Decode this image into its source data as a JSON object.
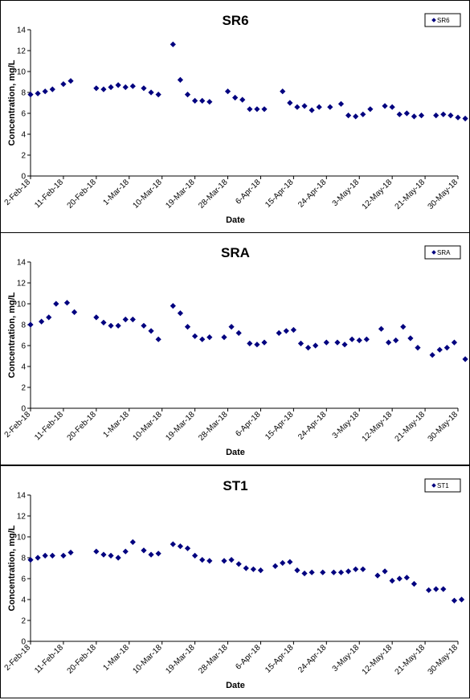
{
  "chart_data": [
    {
      "type": "scatter",
      "title": "SR6",
      "xlabel": "Date",
      "ylabel": "Concentration, mg/L",
      "ylim": [
        0,
        14
      ],
      "yticks": [
        "0",
        "2",
        "4",
        "6",
        "8",
        "10",
        "12",
        "14"
      ],
      "xlim": [
        "2018-02-02",
        "2018-05-30"
      ],
      "xticks": [
        "2-Feb-18",
        "11-Feb-18",
        "20-Feb-18",
        "1-Mar-18",
        "10-Mar-18",
        "19-Mar-18",
        "28-Mar-18",
        "6-Apr-18",
        "15-Apr-18",
        "24-Apr-18",
        "3-May-18",
        "12-May-18",
        "21-May-18",
        "30-May-18"
      ],
      "legend": "top-right",
      "color": "#00007f",
      "series": [
        {
          "name": "SR6",
          "points": [
            [
              "2018-02-02",
              7.8
            ],
            [
              "2018-02-04",
              7.9
            ],
            [
              "2018-02-06",
              8.1
            ],
            [
              "2018-02-08",
              8.3
            ],
            [
              "2018-02-11",
              8.8
            ],
            [
              "2018-02-13",
              9.1
            ],
            [
              "2018-02-20",
              8.4
            ],
            [
              "2018-02-22",
              8.3
            ],
            [
              "2018-02-24",
              8.5
            ],
            [
              "2018-02-26",
              8.7
            ],
            [
              "2018-02-28",
              8.5
            ],
            [
              "2018-03-02",
              8.6
            ],
            [
              "2018-03-05",
              8.4
            ],
            [
              "2018-03-07",
              8.0
            ],
            [
              "2018-03-09",
              7.8
            ],
            [
              "2018-03-13",
              12.6
            ],
            [
              "2018-03-15",
              9.2
            ],
            [
              "2018-03-17",
              7.8
            ],
            [
              "2018-03-19",
              7.2
            ],
            [
              "2018-03-21",
              7.2
            ],
            [
              "2018-03-23",
              7.1
            ],
            [
              "2018-03-28",
              8.1
            ],
            [
              "2018-03-30",
              7.5
            ],
            [
              "2018-04-01",
              7.3
            ],
            [
              "2018-04-03",
              6.4
            ],
            [
              "2018-04-05",
              6.4
            ],
            [
              "2018-04-07",
              6.4
            ],
            [
              "2018-04-12",
              8.1
            ],
            [
              "2018-04-14",
              7.0
            ],
            [
              "2018-04-16",
              6.6
            ],
            [
              "2018-04-18",
              6.7
            ],
            [
              "2018-04-20",
              6.3
            ],
            [
              "2018-04-22",
              6.6
            ],
            [
              "2018-04-25",
              6.6
            ],
            [
              "2018-04-28",
              6.9
            ],
            [
              "2018-04-30",
              5.8
            ],
            [
              "2018-05-02",
              5.7
            ],
            [
              "2018-05-04",
              5.9
            ],
            [
              "2018-05-06",
              6.4
            ],
            [
              "2018-05-10",
              6.7
            ],
            [
              "2018-05-12",
              6.6
            ],
            [
              "2018-05-14",
              5.9
            ],
            [
              "2018-05-16",
              6.0
            ],
            [
              "2018-05-18",
              5.7
            ],
            [
              "2018-05-20",
              5.8
            ],
            [
              "2018-05-24",
              5.8
            ],
            [
              "2018-05-26",
              5.9
            ],
            [
              "2018-05-28",
              5.8
            ],
            [
              "2018-05-30",
              5.6
            ],
            [
              "2018-06-01",
              5.5
            ]
          ]
        }
      ]
    },
    {
      "type": "scatter",
      "title": "SRA",
      "xlabel": "Date",
      "ylabel": "Concentration, mg/L",
      "ylim": [
        0,
        14
      ],
      "yticks": [
        "0",
        "2",
        "4",
        "6",
        "8",
        "10",
        "12",
        "14"
      ],
      "xlim": [
        "2018-02-02",
        "2018-05-30"
      ],
      "xticks": [
        "2-Feb-18",
        "11-Feb-18",
        "20-Feb-18",
        "1-Mar-18",
        "10-Mar-18",
        "19-Mar-18",
        "28-Mar-18",
        "6-Apr-18",
        "15-Apr-18",
        "24-Apr-18",
        "3-May-18",
        "12-May-18",
        "21-May-18",
        "30-May-18"
      ],
      "legend": "top-right",
      "color": "#00007f",
      "series": [
        {
          "name": "SRA",
          "points": [
            [
              "2018-02-02",
              8.0
            ],
            [
              "2018-02-05",
              8.3
            ],
            [
              "2018-02-07",
              8.7
            ],
            [
              "2018-02-09",
              10.0
            ],
            [
              "2018-02-12",
              10.1
            ],
            [
              "2018-02-14",
              9.2
            ],
            [
              "2018-02-20",
              8.7
            ],
            [
              "2018-02-22",
              8.2
            ],
            [
              "2018-02-24",
              7.9
            ],
            [
              "2018-02-26",
              7.9
            ],
            [
              "2018-02-28",
              8.5
            ],
            [
              "2018-03-02",
              8.5
            ],
            [
              "2018-03-05",
              7.9
            ],
            [
              "2018-03-07",
              7.4
            ],
            [
              "2018-03-09",
              6.6
            ],
            [
              "2018-03-13",
              9.8
            ],
            [
              "2018-03-15",
              9.1
            ],
            [
              "2018-03-17",
              7.8
            ],
            [
              "2018-03-19",
              6.9
            ],
            [
              "2018-03-21",
              6.6
            ],
            [
              "2018-03-23",
              6.8
            ],
            [
              "2018-03-27",
              6.8
            ],
            [
              "2018-03-29",
              7.8
            ],
            [
              "2018-03-31",
              7.2
            ],
            [
              "2018-04-03",
              6.2
            ],
            [
              "2018-04-05",
              6.1
            ],
            [
              "2018-04-07",
              6.3
            ],
            [
              "2018-04-11",
              7.2
            ],
            [
              "2018-04-13",
              7.4
            ],
            [
              "2018-04-15",
              7.5
            ],
            [
              "2018-04-17",
              6.2
            ],
            [
              "2018-04-19",
              5.8
            ],
            [
              "2018-04-21",
              6.0
            ],
            [
              "2018-04-24",
              6.3
            ],
            [
              "2018-04-27",
              6.3
            ],
            [
              "2018-04-29",
              6.1
            ],
            [
              "2018-05-01",
              6.6
            ],
            [
              "2018-05-03",
              6.5
            ],
            [
              "2018-05-05",
              6.6
            ],
            [
              "2018-05-09",
              7.6
            ],
            [
              "2018-05-11",
              6.3
            ],
            [
              "2018-05-13",
              6.5
            ],
            [
              "2018-05-15",
              7.8
            ],
            [
              "2018-05-17",
              6.7
            ],
            [
              "2018-05-19",
              5.8
            ],
            [
              "2018-05-23",
              5.1
            ],
            [
              "2018-05-25",
              5.6
            ],
            [
              "2018-05-27",
              5.8
            ],
            [
              "2018-05-29",
              6.3
            ],
            [
              "2018-06-01",
              4.7
            ]
          ]
        }
      ]
    },
    {
      "type": "scatter",
      "title": "ST1",
      "xlabel": "Date",
      "ylabel": "Concentration, mg/L",
      "ylim": [
        0,
        14
      ],
      "yticks": [
        "0",
        "2",
        "4",
        "6",
        "8",
        "10",
        "12",
        "14"
      ],
      "xlim": [
        "2018-02-02",
        "2018-05-30"
      ],
      "xticks": [
        "2-Feb-18",
        "11-Feb-18",
        "20-Feb-18",
        "1-Mar-18",
        "10-Mar-18",
        "19-Mar-18",
        "28-Mar-18",
        "6-Apr-18",
        "15-Apr-18",
        "24-Apr-18",
        "3-May-18",
        "12-May-18",
        "21-May-18",
        "30-May-18"
      ],
      "legend": "top-right",
      "color": "#00007f",
      "series": [
        {
          "name": "ST1",
          "points": [
            [
              "2018-02-02",
              7.8
            ],
            [
              "2018-02-04",
              8.0
            ],
            [
              "2018-02-06",
              8.2
            ],
            [
              "2018-02-08",
              8.2
            ],
            [
              "2018-02-11",
              8.2
            ],
            [
              "2018-02-13",
              8.5
            ],
            [
              "2018-02-20",
              8.6
            ],
            [
              "2018-02-22",
              8.3
            ],
            [
              "2018-02-24",
              8.2
            ],
            [
              "2018-02-26",
              8.0
            ],
            [
              "2018-02-28",
              8.6
            ],
            [
              "2018-03-02",
              9.5
            ],
            [
              "2018-03-05",
              8.7
            ],
            [
              "2018-03-07",
              8.3
            ],
            [
              "2018-03-09",
              8.4
            ],
            [
              "2018-03-13",
              9.3
            ],
            [
              "2018-03-15",
              9.1
            ],
            [
              "2018-03-17",
              8.9
            ],
            [
              "2018-03-19",
              8.2
            ],
            [
              "2018-03-21",
              7.8
            ],
            [
              "2018-03-23",
              7.7
            ],
            [
              "2018-03-27",
              7.7
            ],
            [
              "2018-03-29",
              7.8
            ],
            [
              "2018-03-31",
              7.4
            ],
            [
              "2018-04-02",
              7.0
            ],
            [
              "2018-04-04",
              6.9
            ],
            [
              "2018-04-06",
              6.8
            ],
            [
              "2018-04-10",
              7.2
            ],
            [
              "2018-04-12",
              7.5
            ],
            [
              "2018-04-14",
              7.6
            ],
            [
              "2018-04-16",
              6.8
            ],
            [
              "2018-04-18",
              6.5
            ],
            [
              "2018-04-20",
              6.6
            ],
            [
              "2018-04-23",
              6.6
            ],
            [
              "2018-04-26",
              6.6
            ],
            [
              "2018-04-28",
              6.6
            ],
            [
              "2018-04-30",
              6.7
            ],
            [
              "2018-05-02",
              6.9
            ],
            [
              "2018-05-04",
              6.9
            ],
            [
              "2018-05-08",
              6.3
            ],
            [
              "2018-05-10",
              6.7
            ],
            [
              "2018-05-12",
              5.8
            ],
            [
              "2018-05-14",
              6.0
            ],
            [
              "2018-05-16",
              6.1
            ],
            [
              "2018-05-18",
              5.5
            ],
            [
              "2018-05-22",
              4.9
            ],
            [
              "2018-05-24",
              5.0
            ],
            [
              "2018-05-26",
              5.0
            ],
            [
              "2018-05-29",
              3.9
            ],
            [
              "2018-05-31",
              4.0
            ]
          ]
        }
      ]
    }
  ]
}
